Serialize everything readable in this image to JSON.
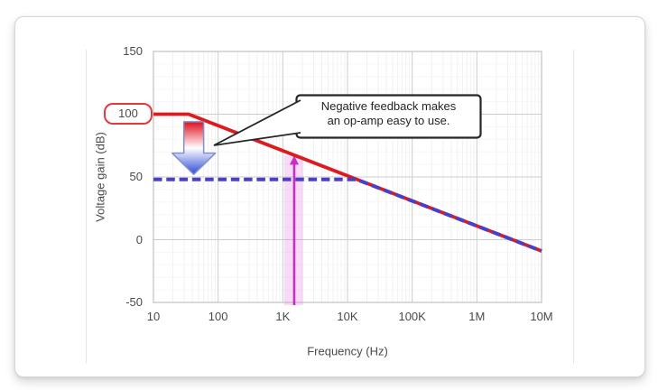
{
  "chart_data": {
    "type": "line",
    "title": "",
    "xlabel": "Frequency (Hz)",
    "ylabel": "Voltage gain (dB)",
    "x_scale": "log",
    "x_range": [
      10,
      10000000
    ],
    "y_range": [
      -50,
      150
    ],
    "grid": true,
    "legend": false,
    "x_ticks": [
      {
        "label": "10",
        "value": 10
      },
      {
        "label": "100",
        "value": 100
      },
      {
        "label": "1K",
        "value": 1000
      },
      {
        "label": "10K",
        "value": 10000
      },
      {
        "label": "100K",
        "value": 100000
      },
      {
        "label": "1M",
        "value": 1000000
      },
      {
        "label": "10M",
        "value": 10000000
      }
    ],
    "y_ticks": [
      {
        "label": "150",
        "value": 150
      },
      {
        "label": "100",
        "value": 100,
        "badged": true
      },
      {
        "label": "50",
        "value": 50
      },
      {
        "label": "0",
        "value": 0
      },
      {
        "label": "-50",
        "value": -50
      }
    ],
    "series": [
      {
        "name": "open-loop-gain-line",
        "color": "#dd1a1e",
        "style": "solid",
        "width": 3.8,
        "points": [
          [
            10,
            100
          ],
          [
            35,
            100
          ],
          [
            10000000,
            -9
          ]
        ]
      },
      {
        "name": "closed-loop-gain-line",
        "color": "#4a3fc9",
        "style": "dashed",
        "width": 4,
        "points": [
          [
            10,
            48
          ],
          [
            13900,
            48
          ],
          [
            10000000,
            -9
          ]
        ]
      }
    ],
    "annotations": {
      "gain_badge": {
        "label": "100",
        "border_color": "#e5383d"
      },
      "callout": {
        "line1": "Negative feedback makes",
        "line2": "an op-amp easy to use."
      },
      "down_arrow": {
        "freq": 42,
        "from_db": 94,
        "head_db": 69,
        "to_db": 52,
        "gradient": [
          "#e00f1f",
          "#ffffff",
          "#2d48d6"
        ],
        "outline": "#8090c8"
      },
      "freq_marker": {
        "freq": 1500,
        "to_db": 67,
        "color": "#c62fc6",
        "band_freq_range": [
          1050,
          2050
        ],
        "band_color": "rgba(226,132,226,0.30)"
      }
    },
    "colors": {
      "grid_major": "#cdcdcd",
      "grid_minor": "#f1f1f1",
      "frame": "#c0c0c0",
      "callout_border": "#262626",
      "tick_text": "#4a4a4a"
    }
  }
}
